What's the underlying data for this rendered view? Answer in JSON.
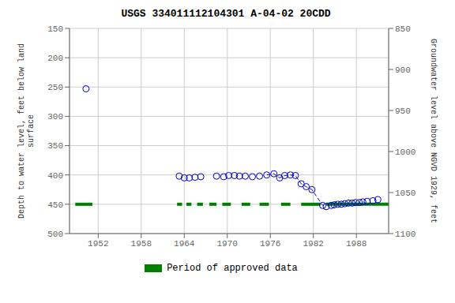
{
  "chart_data": {
    "type": "scatter",
    "title": "USGS 334011112104301 A-04-02 20CDD",
    "ylabel": "Depth to water level, feet below land\nsurface",
    "y2label": "Groundwater level above NGVD 1929, feet",
    "xlim": [
      1948.0,
      1992.5
    ],
    "xticks": [
      1952,
      1958,
      1964,
      1970,
      1976,
      1982,
      1988
    ],
    "ylim": [
      500,
      150
    ],
    "yticks": [
      150,
      200,
      250,
      300,
      350,
      400,
      450,
      500
    ],
    "y2lim": [
      1100,
      850
    ],
    "y2ticks": [
      850,
      900,
      950,
      1000,
      1050,
      1100
    ],
    "grid": true,
    "series": [
      {
        "type": "scatter",
        "marker": "circle",
        "color": "#0000cc",
        "x": [
          1950.3,
          1963.3,
          1964.0,
          1964.7,
          1965.5,
          1966.3,
          1968.5,
          1969.5,
          1970.2,
          1971.0,
          1971.7,
          1972.5,
          1973.5,
          1974.5,
          1975.5,
          1976.5,
          1977.3,
          1978.0,
          1978.8,
          1979.5,
          1980.3,
          1981.0,
          1981.8,
          1983.3,
          1983.8,
          1984.5,
          1984.9,
          1985.4,
          1985.9,
          1986.4,
          1986.9,
          1987.4,
          1987.9,
          1988.4,
          1988.9,
          1989.5,
          1990.3,
          1991.0
        ],
        "values": [
          253,
          402,
          405,
          405,
          404,
          403,
          402,
          403,
          401,
          401,
          402,
          402,
          403,
          402,
          400,
          398,
          405,
          401,
          400,
          401,
          415,
          420,
          425,
          452,
          454,
          452,
          451,
          450,
          450,
          449,
          448,
          448,
          447,
          447,
          446,
          445,
          444,
          442
        ]
      },
      {
        "type": "line",
        "line_style": "dashed",
        "color": "#0000cc",
        "x": [
          1975.5,
          1976.5,
          1977.3,
          1978.0,
          1978.8,
          1979.5,
          1980.3,
          1981.0,
          1981.8,
          1983.3,
          1983.8
        ],
        "values": [
          400,
          398,
          405,
          401,
          400,
          401,
          415,
          420,
          425,
          452,
          454
        ]
      },
      {
        "type": "segments",
        "name": "Period of approved data",
        "color": "#008000",
        "level": 450,
        "segments": [
          [
            1948.8,
            1951.2
          ],
          [
            1963.0,
            1963.7
          ],
          [
            1964.3,
            1965.0
          ],
          [
            1965.8,
            1966.6
          ],
          [
            1967.5,
            1968.5
          ],
          [
            1969.3,
            1970.5
          ],
          [
            1972.0,
            1973.2
          ],
          [
            1974.5,
            1975.8
          ],
          [
            1977.5,
            1978.8
          ],
          [
            1980.3,
            1983.0
          ],
          [
            1983.8,
            1992.5
          ]
        ]
      }
    ]
  }
}
